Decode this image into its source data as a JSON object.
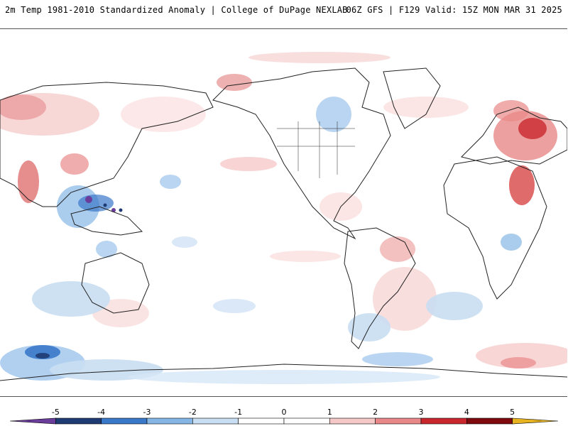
{
  "header": {
    "title": "2m Temp 1981-2010 Standardized Anomaly | College of DuPage NEXLAB",
    "run_info": "06Z GFS | F129 Valid: 15Z MON MAR 31 2025"
  },
  "legend": {
    "tick_labels": [
      "-5",
      "-4",
      "-3",
      "-2",
      "-1",
      "0",
      "1",
      "2",
      "3",
      "4",
      "5"
    ],
    "colors": [
      "#6a3d9a",
      "#1f3b73",
      "#3a78c9",
      "#86b6e6",
      "#c9def2",
      "#ffffff",
      "#ffffff",
      "#f6c9c9",
      "#e98888",
      "#c8282d",
      "#7e0a0d",
      "#e8b320"
    ]
  },
  "map": {
    "projection": "equirectangular",
    "variable": "2m temperature standardized anomaly",
    "warm_color": "#e05656",
    "cold_color": "#4f8fd6",
    "continent_outline_color": "#222222"
  }
}
